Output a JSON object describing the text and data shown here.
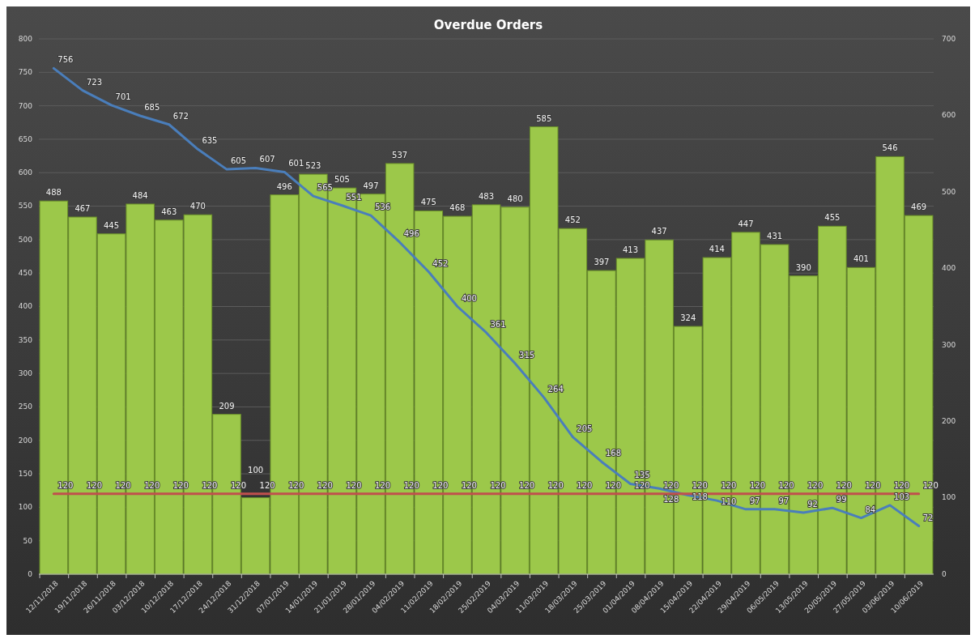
{
  "chart_data": {
    "type": "bar",
    "title": "Overdue Orders",
    "categories": [
      "12/11/2018",
      "19/11/2018",
      "26/11/2018",
      "03/12/2018",
      "10/12/2018",
      "17/12/2018",
      "24/12/2018",
      "31/12/2018",
      "07/01/2019",
      "14/01/2019",
      "21/01/2019",
      "28/01/2019",
      "04/02/2019",
      "11/02/2019",
      "18/02/2019",
      "25/02/2019",
      "04/03/2019",
      "11/03/2019",
      "18/03/2019",
      "25/03/2019",
      "01/04/2019",
      "08/04/2019",
      "15/04/2019",
      "22/04/2019",
      "29/04/2019",
      "06/05/2019",
      "13/05/2019",
      "20/05/2019",
      "27/05/2019",
      "03/06/2019",
      "10/06/2019"
    ],
    "series": [
      {
        "axis": "y2",
        "color": "#9cc84a",
        "values": [
          488,
          467,
          445,
          484,
          463,
          470,
          209,
          100,
          496,
          523,
          505,
          497,
          537,
          475,
          468,
          483,
          480,
          585,
          452,
          397,
          413,
          437,
          324,
          414,
          447,
          431,
          390,
          455,
          401,
          546,
          469
        ]
      },
      {
        "type": "line",
        "axis": "y",
        "color": "#4a7ebb",
        "values": [
          756,
          723,
          701,
          685,
          672,
          635,
          605,
          607,
          601,
          565,
          551,
          536,
          496,
          452,
          400,
          361,
          315,
          264,
          205,
          168,
          135,
          128,
          118,
          110,
          97,
          97,
          92,
          99,
          84,
          103,
          72
        ]
      },
      {
        "type": "line",
        "axis": "y",
        "color": "#c0504d",
        "values": [
          120,
          120,
          120,
          120,
          120,
          120,
          120,
          120,
          120,
          120,
          120,
          120,
          120,
          120,
          120,
          120,
          120,
          120,
          120,
          120,
          120,
          120,
          120,
          120,
          120,
          120,
          120,
          120,
          120,
          120,
          120
        ]
      }
    ],
    "ylim": [
      0,
      800
    ],
    "yticks": [
      0,
      50,
      100,
      150,
      200,
      250,
      300,
      350,
      400,
      450,
      500,
      550,
      600,
      650,
      700,
      750,
      800
    ],
    "y2lim": [
      0,
      700
    ],
    "y2ticks": [
      0,
      100,
      200,
      300,
      400,
      500,
      600,
      700
    ],
    "grid": "y",
    "data_labels": true
  }
}
